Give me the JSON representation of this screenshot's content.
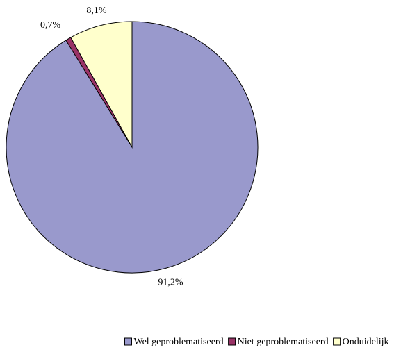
{
  "chart_data": {
    "type": "pie",
    "categories": [
      "Wel geproblematiseerd",
      "Niet geproblematiseerd",
      "Onduidelijk"
    ],
    "values": [
      91.2,
      0.7,
      8.1
    ],
    "value_labels": [
      "91,2%",
      "0,7%",
      "8,1%"
    ],
    "colors": [
      "#9999cc",
      "#993366",
      "#ffffcc"
    ],
    "legend": "bottom"
  }
}
